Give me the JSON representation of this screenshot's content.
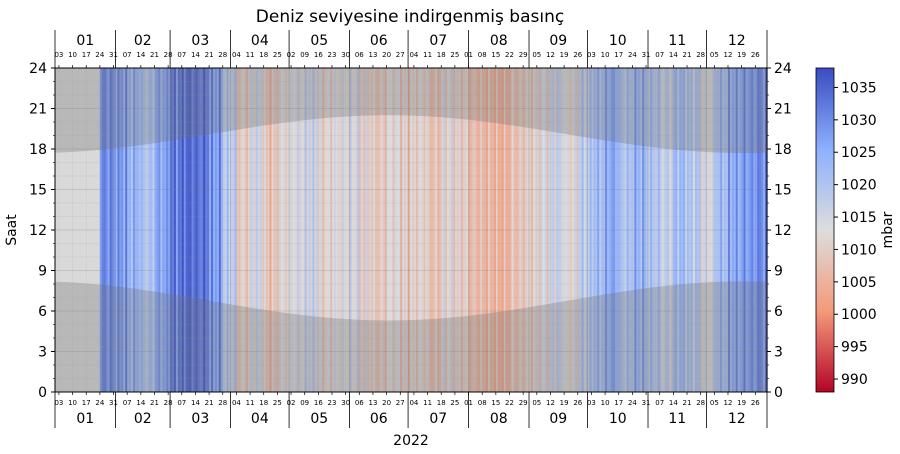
{
  "chart_data": {
    "type": "heatmap",
    "title": "Deniz seviyesine indirgenmiş basınç",
    "xlabel": "2022",
    "ylabel": "Saat",
    "year": 2022,
    "ylim": [
      0,
      24
    ],
    "yticks": [
      0,
      3,
      6,
      9,
      12,
      15,
      18,
      21,
      24
    ],
    "month_labels": [
      "01",
      "02",
      "03",
      "04",
      "05",
      "06",
      "07",
      "08",
      "09",
      "10",
      "11",
      "12"
    ],
    "week_tick_labels": [
      "03",
      "10",
      "17",
      "24",
      "31",
      "07",
      "14",
      "21",
      "28",
      "07",
      "14",
      "21",
      "28",
      "04",
      "11",
      "18",
      "25",
      "02",
      "09",
      "16",
      "23",
      "30",
      "06",
      "13",
      "20",
      "27",
      "04",
      "11",
      "18",
      "25",
      "01",
      "08",
      "15",
      "22",
      "29",
      "05",
      "12",
      "19",
      "26",
      "03",
      "10",
      "17",
      "24",
      "31",
      "07",
      "14",
      "21",
      "28",
      "05",
      "12",
      "19",
      "26"
    ],
    "weekly_mean_pressure_mbar": [
      null,
      null,
      null,
      1030,
      1028,
      1024,
      1020,
      1026,
      1032,
      1034,
      1033,
      1028,
      1018,
      1010,
      1015,
      1008,
      1012,
      1014,
      1016,
      1011,
      1013,
      1014,
      1011,
      1009,
      1012,
      1010,
      1011,
      1008,
      1012,
      1010,
      1007,
      1006,
      1005,
      1008,
      1010,
      1013,
      1016,
      1012,
      1018,
      1022,
      1026,
      1020,
      1024,
      1020,
      1017,
      1022,
      1019,
      1014,
      1022,
      1026,
      1028,
      1030
    ],
    "missing_color": "#d9d9d9",
    "night_shading": true,
    "colorbar": {
      "label": "mbar",
      "range": [
        988,
        1038
      ],
      "ticks": [
        990,
        995,
        1000,
        1005,
        1010,
        1015,
        1020,
        1025,
        1030,
        1035
      ],
      "colormap": "coolwarm_r",
      "low_color": "#b40426",
      "mid_color": "#dddddd",
      "high_color": "#3b4cc0"
    }
  }
}
